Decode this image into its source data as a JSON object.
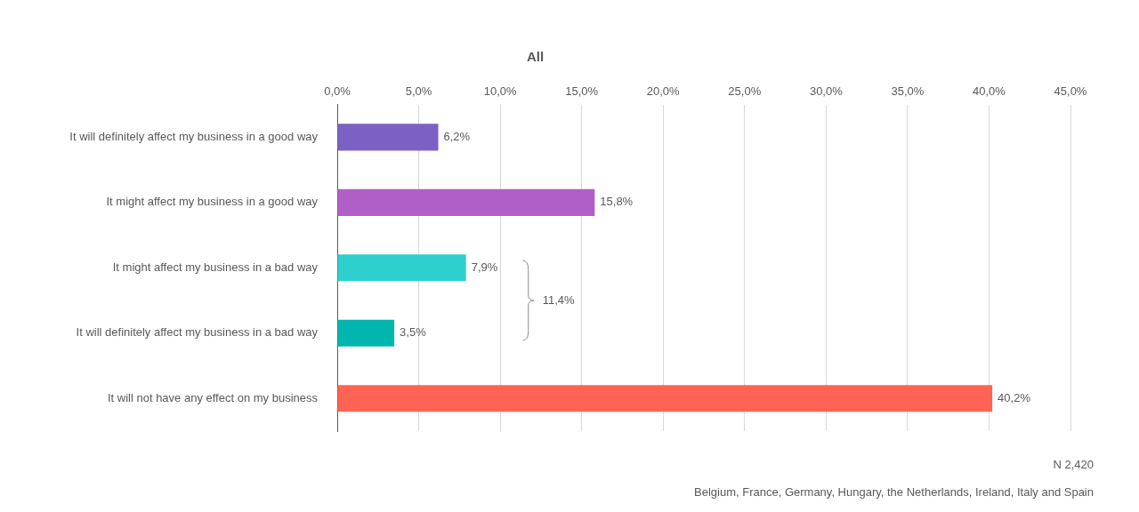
{
  "chart_data": {
    "type": "bar",
    "orientation": "horizontal",
    "title": "All",
    "categories": [
      "It will definitely affect my business in a good way",
      "It might affect my business in a good way",
      "It might affect my business in a bad way",
      "It will definitely affect my business in a bad way",
      "It will not have any effect on my business"
    ],
    "values": [
      6.2,
      15.8,
      7.9,
      3.5,
      40.2
    ],
    "value_labels": [
      "6,2%",
      "15,8%",
      "7,9%",
      "3,5%",
      "40,2%"
    ],
    "colors": [
      "#7b61c4",
      "#b05fc6",
      "#2dd0cc",
      "#00b6ae",
      "#ff6353"
    ],
    "xlim": [
      0,
      45
    ],
    "xticks": [
      {
        "value": 0,
        "label": "0,0%"
      },
      {
        "value": 5,
        "label": "5,0%"
      },
      {
        "value": 10,
        "label": "10,0%"
      },
      {
        "value": 15,
        "label": "15,0%"
      },
      {
        "value": 20,
        "label": "20,0%"
      },
      {
        "value": 25,
        "label": "25,0%"
      },
      {
        "value": 30,
        "label": "30,0%"
      },
      {
        "value": 35,
        "label": "35,0%"
      },
      {
        "value": 40,
        "label": "40,0%"
      },
      {
        "value": 45,
        "label": "45,0%"
      }
    ],
    "grid": true,
    "data_labels": true,
    "annotations": [
      {
        "label": "11,4%",
        "value": 11.4,
        "categories": [
          "It might affect my business in a bad way",
          "It will definitely affect my business in a bad way"
        ]
      }
    ],
    "notes": [
      "N 2,420",
      "Belgium, France, Germany, Hungary, the Netherlands, Ireland, Italy and Spain"
    ]
  }
}
